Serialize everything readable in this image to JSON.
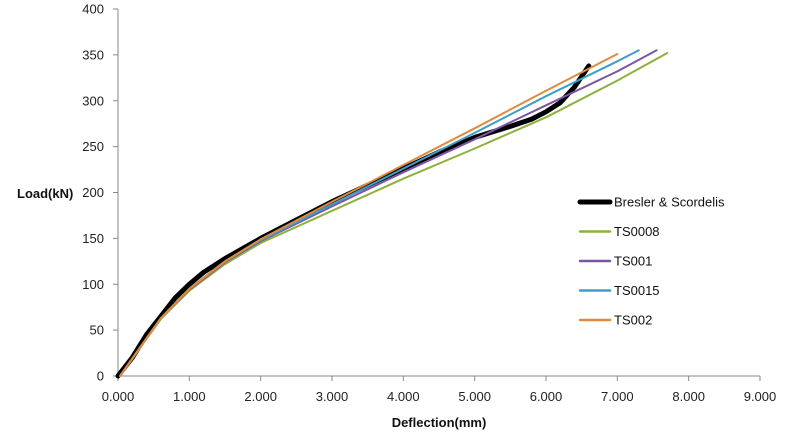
{
  "chart_data": {
    "type": "line",
    "title": "",
    "xlabel": "Deflection(mm)",
    "ylabel": "Load(kN)",
    "xlim": [
      0,
      9
    ],
    "ylim": [
      0,
      400
    ],
    "x_tick_labels": [
      "0.000",
      "1.000",
      "2.000",
      "3.000",
      "4.000",
      "5.000",
      "6.000",
      "7.000",
      "8.000",
      "9.000"
    ],
    "y_tick_labels": [
      "0",
      "50",
      "100",
      "150",
      "200",
      "250",
      "300",
      "350",
      "400"
    ],
    "grid": false,
    "legend_position": "right",
    "series": [
      {
        "name": "Bresler & Scordelis",
        "color": "#000000",
        "width": 5,
        "points": [
          [
            0.0,
            0
          ],
          [
            0.2,
            20
          ],
          [
            0.4,
            45
          ],
          [
            0.6,
            65
          ],
          [
            0.8,
            85
          ],
          [
            1.0,
            100
          ],
          [
            1.2,
            113
          ],
          [
            1.5,
            128
          ],
          [
            2.0,
            150
          ],
          [
            2.5,
            170
          ],
          [
            3.0,
            190
          ],
          [
            3.5,
            208
          ],
          [
            4.0,
            226
          ],
          [
            4.5,
            244
          ],
          [
            5.0,
            260
          ],
          [
            5.5,
            272
          ],
          [
            5.8,
            280
          ],
          [
            6.0,
            288
          ],
          [
            6.2,
            298
          ],
          [
            6.4,
            315
          ],
          [
            6.6,
            338
          ]
        ]
      },
      {
        "name": "TS0008",
        "color": "#8db13c",
        "width": 2,
        "points": [
          [
            0.03,
            0
          ],
          [
            0.3,
            30
          ],
          [
            0.6,
            62
          ],
          [
            1.0,
            93
          ],
          [
            1.5,
            122
          ],
          [
            2.0,
            145
          ],
          [
            3.0,
            180
          ],
          [
            4.0,
            215
          ],
          [
            5.0,
            248
          ],
          [
            6.0,
            282
          ],
          [
            7.0,
            322
          ],
          [
            7.7,
            352
          ]
        ]
      },
      {
        "name": "TS001",
        "color": "#7b55a5",
        "width": 2,
        "points": [
          [
            0.03,
            0
          ],
          [
            0.3,
            30
          ],
          [
            0.6,
            63
          ],
          [
            1.0,
            94
          ],
          [
            1.5,
            124
          ],
          [
            2.0,
            147
          ],
          [
            3.0,
            185
          ],
          [
            4.0,
            222
          ],
          [
            5.0,
            258
          ],
          [
            6.0,
            295
          ],
          [
            7.0,
            332
          ],
          [
            7.55,
            355
          ]
        ]
      },
      {
        "name": "TS0015",
        "color": "#3e9fc5",
        "width": 2,
        "points": [
          [
            0.03,
            0
          ],
          [
            0.3,
            30
          ],
          [
            0.6,
            63
          ],
          [
            1.0,
            95
          ],
          [
            1.5,
            125
          ],
          [
            2.0,
            148
          ],
          [
            3.0,
            187
          ],
          [
            4.0,
            226
          ],
          [
            5.0,
            265
          ],
          [
            6.0,
            305
          ],
          [
            7.0,
            343
          ],
          [
            7.3,
            355
          ]
        ]
      },
      {
        "name": "TS002",
        "color": "#e08a41",
        "width": 2,
        "points": [
          [
            0.03,
            0
          ],
          [
            0.3,
            30
          ],
          [
            0.6,
            63
          ],
          [
            1.0,
            95
          ],
          [
            1.5,
            125
          ],
          [
            2.0,
            149
          ],
          [
            3.0,
            190
          ],
          [
            4.0,
            230
          ],
          [
            5.0,
            270
          ],
          [
            6.0,
            311
          ],
          [
            7.0,
            351
          ]
        ]
      }
    ]
  }
}
